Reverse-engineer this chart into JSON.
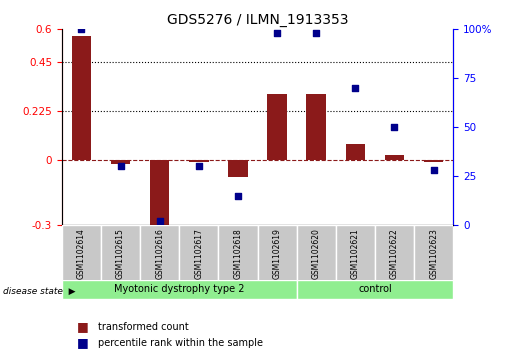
{
  "title": "GDS5276 / ILMN_1913353",
  "samples": [
    "GSM1102614",
    "GSM1102615",
    "GSM1102616",
    "GSM1102617",
    "GSM1102618",
    "GSM1102619",
    "GSM1102620",
    "GSM1102621",
    "GSM1102622",
    "GSM1102623"
  ],
  "transformed_count": [
    0.57,
    -0.02,
    -0.32,
    -0.01,
    -0.08,
    0.3,
    0.3,
    0.07,
    0.02,
    -0.01
  ],
  "percentile_rank": [
    100,
    30,
    2,
    30,
    15,
    98,
    98,
    70,
    50,
    28
  ],
  "bar_color": "#8B1A1A",
  "dot_color": "#00008B",
  "ylim_left": [
    -0.3,
    0.6
  ],
  "ylim_right": [
    0,
    100
  ],
  "yticks_left": [
    -0.3,
    0,
    0.225,
    0.45,
    0.6
  ],
  "yticks_right": [
    0,
    25,
    50,
    75,
    100
  ],
  "hlines": [
    0.45,
    0.225
  ],
  "disease_groups": [
    {
      "label": "Myotonic dystrophy type 2",
      "start": 0,
      "end": 6,
      "color": "#90EE90"
    },
    {
      "label": "control",
      "start": 6,
      "end": 10,
      "color": "#90EE90"
    }
  ],
  "label_bg_color": "#C8C8C8",
  "legend_red_label": "transformed count",
  "legend_blue_label": "percentile rank within the sample",
  "disease_state_label": "disease state"
}
